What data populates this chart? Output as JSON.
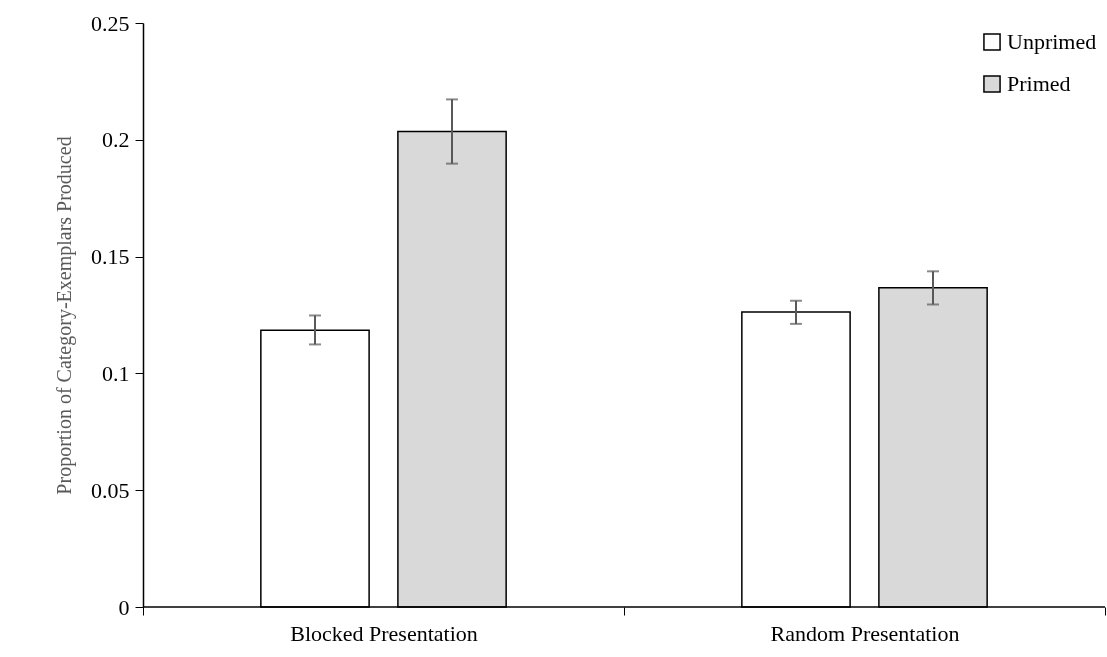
{
  "chart_data": {
    "type": "bar",
    "ylabel": "Proportion of Category-Exemplars Produced",
    "categories": [
      "Blocked Presentation",
      "Random Presentation"
    ],
    "series": [
      {
        "name": "Unprimed",
        "color": "#ffffff",
        "values": [
          0.1185,
          0.1263
        ],
        "errors": [
          [
            0.1124,
            0.1248
          ],
          [
            0.1212,
            0.1311
          ]
        ]
      },
      {
        "name": "Primed",
        "color": "#d9d9d9",
        "values": [
          0.2035,
          0.1367
        ],
        "errors": [
          [
            0.1898,
            0.2173
          ],
          [
            0.1295,
            0.1437
          ]
        ]
      }
    ],
    "ylim": [
      0,
      0.25
    ],
    "yticks": [
      0,
      0.05,
      0.1,
      0.15,
      0.2,
      0.25
    ],
    "grid": false,
    "legend": "top right"
  }
}
